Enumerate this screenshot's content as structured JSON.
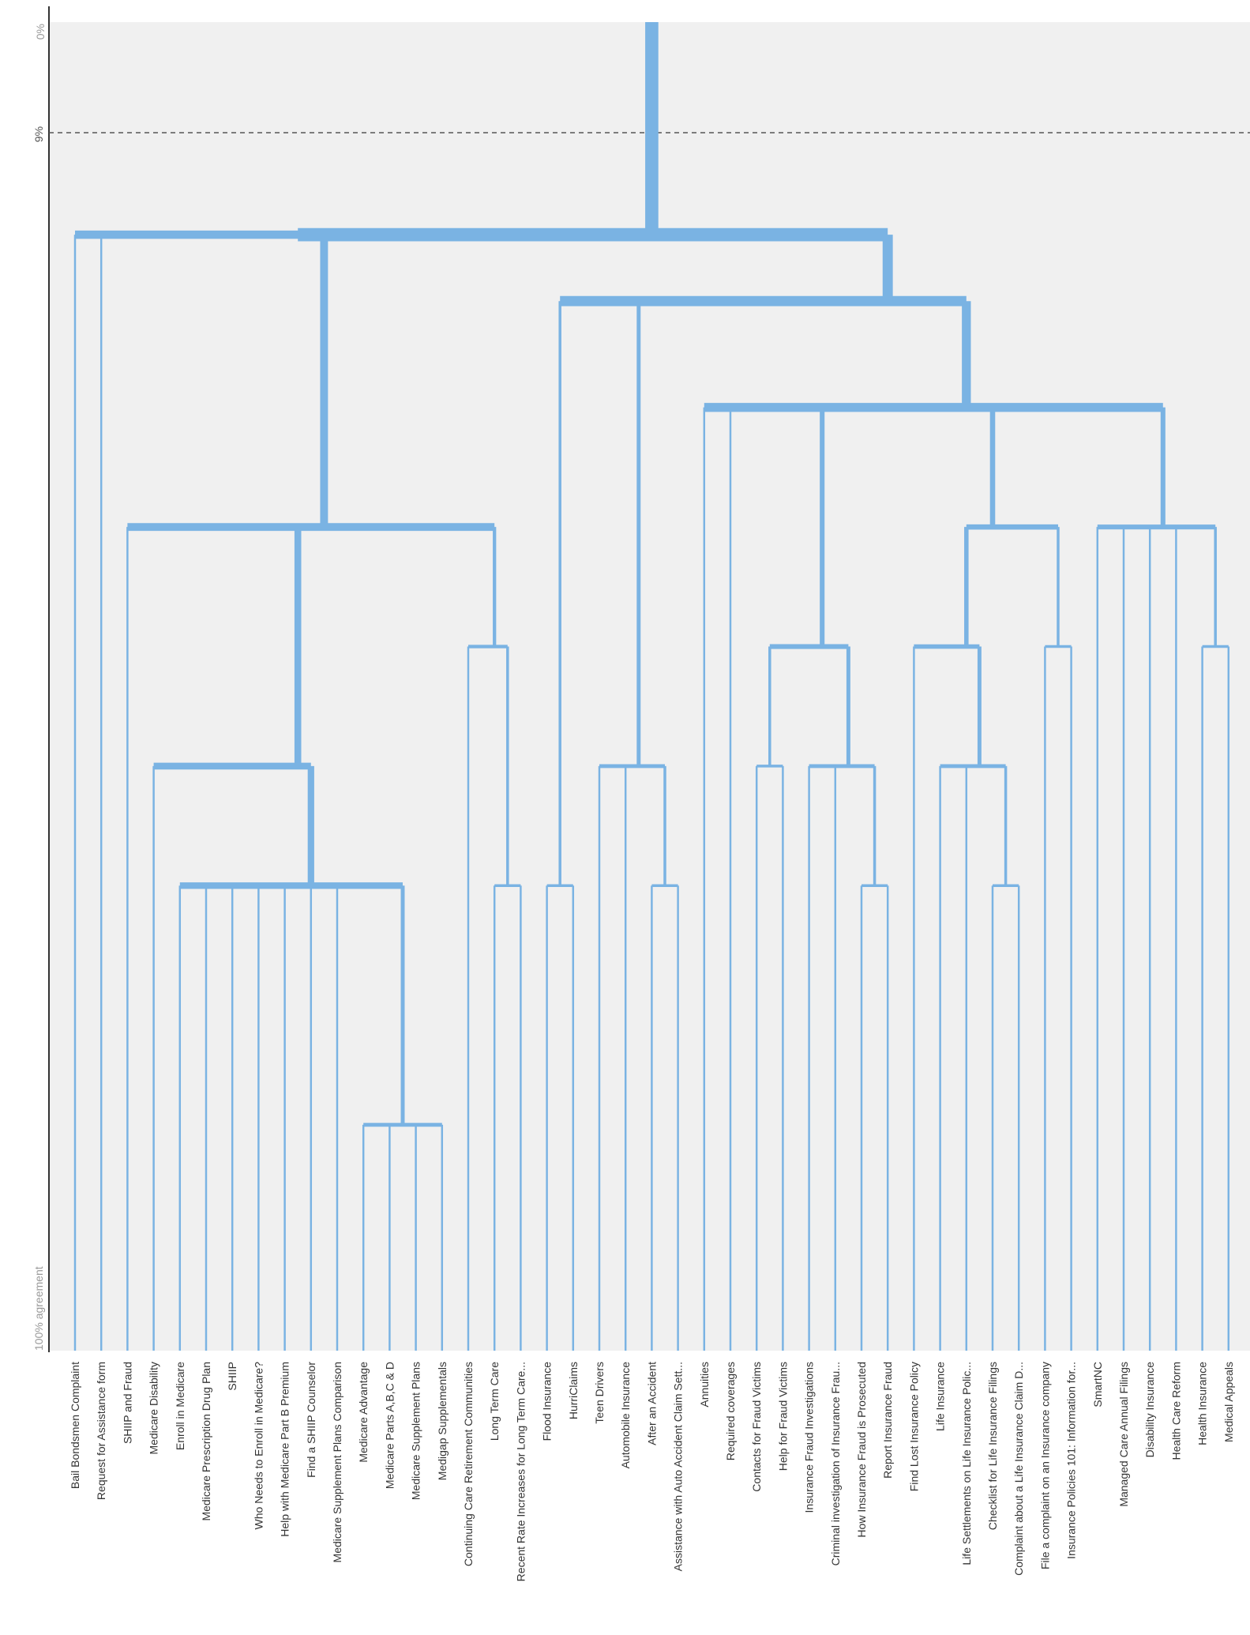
{
  "chart_data": {
    "type": "dendrogram",
    "orientation": "top-down",
    "axis": {
      "top_label": "0%",
      "threshold_label": "9%",
      "bottom_label": "100% agreement",
      "threshold_value": 9
    },
    "colors": {
      "background": "#f0f0f0",
      "branch": "#7ab3e3",
      "axis": "#333333"
    },
    "leaves": [
      "Bail Bondsmen Complaint",
      "Request for Assistance form",
      "SHIIP and Fraud",
      "Medicare Disability",
      "Enroll in Medicare",
      "Medicare Prescription Drug Plan",
      "SHIIP",
      "Who Needs to Enroll in Medicare?",
      "Help with Medicare Part B Premium",
      "Find a SHIIP Counselor",
      "Medicare Supplement Plans Comparison",
      "Medicare Advantage",
      "Medicare Parts A,B,C & D",
      "Medicare Supplement Plans",
      "Medigap Supplementals",
      "Continuing Care Retirement Communities",
      "Long Term Care",
      "Recent Rate Increases for Long Term Care...",
      "Flood Insurance",
      "HurriClaims",
      "Teen Drivers",
      "Automobile Insurance",
      "After an Accident",
      "Assistance with Auto Accident Claim Sett...",
      "Annuities",
      "Required coverages",
      "Contacts for Fraud Victims",
      "Help for Fraud Victims",
      "Insurance Fraud Investigations",
      "Criminal investigation of Insurance Frau...",
      "How Insurance Fraud is Prosecuted",
      "Report Insurance Fraud",
      "Find Lost Insurance Policy",
      "Life Insurance",
      "Life Settlements on Life Insurance Polic...",
      "Checklist for Life Insurance Filings",
      "Complaint about a Life Insurance Claim D...",
      "File a complaint on an Insurance company",
      "Insurance Policies 101: Information for...",
      "SmartNC",
      "Managed Care Annual Filings",
      "Disability Insurance",
      "Health Care Reform",
      "Health Insurance",
      "Medical Appeals"
    ],
    "merges": [
      {
        "id": "m1",
        "children": [
          "Medicare Parts A,B,C & D",
          "Medicare Supplement Plans",
          "Medicare Advantage",
          "Medigap Supplementals"
        ],
        "agreement": 83
      },
      {
        "id": "m2",
        "children": [
          "Enroll in Medicare",
          "Medicare Prescription Drug Plan",
          "SHIIP",
          "Who Needs to Enroll in Medicare?",
          "Help with Medicare Part B Premium",
          "Find a SHIIP Counselor",
          "Medicare Supplement Plans Comparison",
          "m1"
        ],
        "agreement": 65
      },
      {
        "id": "m3",
        "children": [
          "Medicare Disability",
          "m2"
        ],
        "agreement": 56
      },
      {
        "id": "m4",
        "children": [
          "Long Term Care",
          "Recent Rate Increases for Long Term Care..."
        ],
        "agreement": 65
      },
      {
        "id": "m5",
        "children": [
          "Continuing Care Retirement Communities",
          "m4"
        ],
        "agreement": 47
      },
      {
        "id": "m6",
        "children": [
          "SHIIP and Fraud",
          "m3",
          "m5"
        ],
        "agreement": 38
      },
      {
        "id": "m7",
        "children": [
          "Bail Bondsmen Complaint",
          "Request for Assistance form",
          "m6"
        ],
        "agreement": 16
      },
      {
        "id": "m8",
        "children": [
          "Flood Insurance",
          "HurriClaims"
        ],
        "agreement": 65
      },
      {
        "id": "m9",
        "children": [
          "After an Accident",
          "Assistance with Auto Accident Claim Sett..."
        ],
        "agreement": 65
      },
      {
        "id": "m10",
        "children": [
          "Teen Drivers",
          "Automobile Insurance",
          "m9"
        ],
        "agreement": 56
      },
      {
        "id": "m11",
        "children": [
          "Contacts for Fraud Victims",
          "Help for Fraud Victims"
        ],
        "agreement": 56
      },
      {
        "id": "m12",
        "children": [
          "How Insurance Fraud is Prosecuted",
          "Report Insurance Fraud"
        ],
        "agreement": 65
      },
      {
        "id": "m13",
        "children": [
          "Insurance Fraud Investigations",
          "Criminal investigation of Insurance Frau...",
          "m12"
        ],
        "agreement": 56
      },
      {
        "id": "m14",
        "children": [
          "m11",
          "m13"
        ],
        "agreement": 47
      },
      {
        "id": "m15",
        "children": [
          "Complaint about a Life Insurance Claim D...",
          "Checklist for Life Insurance Filings"
        ],
        "agreement": 65
      },
      {
        "id": "m16",
        "children": [
          "Life Insurance",
          "Life Settlements on Life Insurance Polic...",
          "m15"
        ],
        "agreement": 56
      },
      {
        "id": "m17",
        "children": [
          "Find Lost Insurance Policy",
          "m16"
        ],
        "agreement": 47
      },
      {
        "id": "m18",
        "children": [
          "File a complaint on an Insurance company",
          "Insurance Policies 101: Information for..."
        ],
        "agreement": 47
      },
      {
        "id": "m19",
        "children": [
          "m17",
          "m18"
        ],
        "agreement": 38
      },
      {
        "id": "m20",
        "children": [
          "Health Insurance",
          "Medical Appeals"
        ],
        "agreement": 47
      },
      {
        "id": "m21",
        "children": [
          "SmartNC",
          "Managed Care Annual Filings",
          "Disability Insurance",
          "Health Care Reform",
          "m20"
        ],
        "agreement": 38
      },
      {
        "id": "m22",
        "children": [
          "Annuities",
          "Required coverages",
          "m14",
          "m19",
          "m21"
        ],
        "agreement": 29
      },
      {
        "id": "m23",
        "children": [
          "Flood Insurance/HurriClaims",
          "m10",
          "m22"
        ],
        "agreement": 21
      },
      {
        "id": "m24",
        "children": [
          "m7",
          "m23"
        ],
        "agreement": 16
      },
      {
        "id": "root",
        "children": [
          "m24"
        ],
        "agreement": 0
      }
    ]
  }
}
